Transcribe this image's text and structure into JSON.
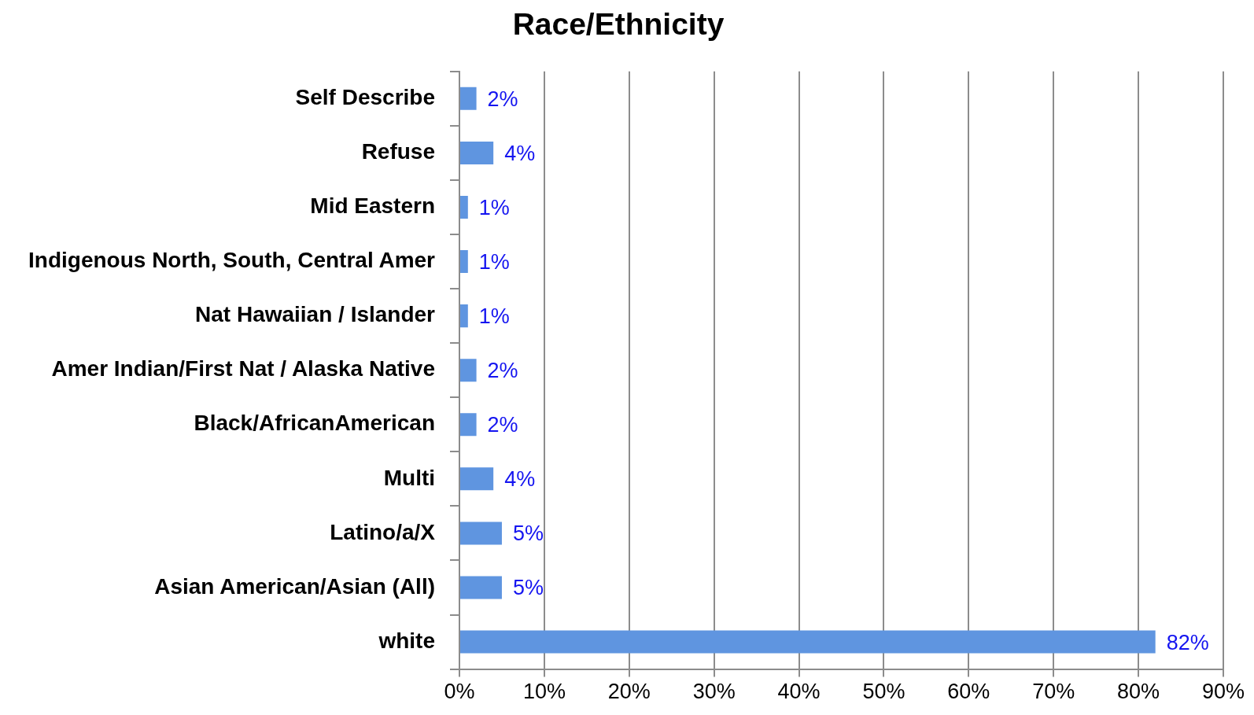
{
  "chart_data": {
    "type": "bar",
    "orientation": "horizontal",
    "title": "Race/Ethnicity",
    "categories": [
      "Self Describe",
      "Refuse",
      "Mid Eastern",
      "Indigenous North, South, Central Amer",
      "Nat Hawaiian / Islander",
      "Amer Indian/First Nat / Alaska Native",
      "Black/AfricanAmerican",
      "Multi",
      "Latino/a/X",
      "Asian American/Asian (All)",
      "white"
    ],
    "values": [
      2,
      4,
      1,
      1,
      1,
      2,
      2,
      4,
      5,
      5,
      82
    ],
    "value_labels": [
      "2%",
      "4%",
      "1%",
      "1%",
      "1%",
      "2%",
      "2%",
      "4%",
      "5%",
      "5%",
      "82%"
    ],
    "color": "#5f95e0",
    "xlim": [
      0,
      90
    ],
    "xticks": [
      {
        "value": 0,
        "label": "0%"
      },
      {
        "value": 10,
        "label": "10%"
      },
      {
        "value": 20,
        "label": "20%"
      },
      {
        "value": 30,
        "label": "30%"
      },
      {
        "value": 40,
        "label": "40%"
      },
      {
        "value": 50,
        "label": "50%"
      },
      {
        "value": 60,
        "label": "60%"
      },
      {
        "value": 70,
        "label": "70%"
      },
      {
        "value": 80,
        "label": "80%"
      },
      {
        "value": 90,
        "label": "90%"
      }
    ],
    "grid": "x"
  }
}
